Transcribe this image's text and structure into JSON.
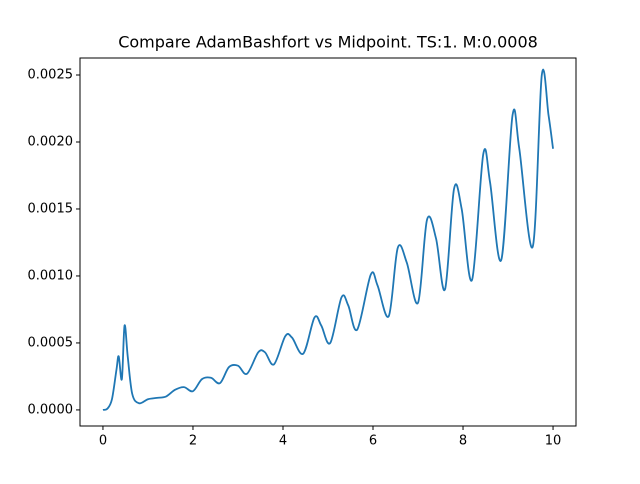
{
  "chart_data": {
    "type": "line",
    "title": "Compare AdamBashfort vs Midpoint. TS:1. M:0.0008",
    "x": [
      0,
      0.1,
      0.2,
      0.3,
      0.35,
      0.42,
      0.48,
      0.55,
      0.65,
      0.8,
      1.0,
      1.2,
      1.4,
      1.6,
      1.8,
      2.0,
      2.2,
      2.4,
      2.6,
      2.8,
      3.0,
      3.2,
      3.45,
      3.6,
      3.8,
      4.05,
      4.2,
      4.45,
      4.7,
      4.85,
      5.05,
      5.3,
      5.45,
      5.65,
      5.95,
      6.1,
      6.35,
      6.55,
      6.75,
      7.0,
      7.2,
      7.4,
      7.6,
      7.8,
      7.97,
      8.2,
      8.45,
      8.6,
      8.85,
      9.1,
      9.25,
      9.55,
      9.75,
      9.9,
      10.0
    ],
    "series": [
      {
        "name": "AdamBashfort vs Midpoint",
        "color": "#1f77b4",
        "values": [
          0,
          1e-05,
          8e-05,
          0.0003,
          0.0004,
          0.00023,
          0.00063,
          0.0004,
          0.00012,
          5e-05,
          8e-05,
          9e-05,
          0.0001,
          0.00015,
          0.00017,
          0.00014,
          0.00023,
          0.00024,
          0.0002,
          0.00032,
          0.00033,
          0.00027,
          0.00043,
          0.00043,
          0.00034,
          0.00055,
          0.00054,
          0.00042,
          0.00069,
          0.00063,
          0.0005,
          0.00084,
          0.00078,
          0.0006,
          0.00101,
          0.00093,
          0.0007,
          0.00121,
          0.0011,
          0.0008,
          0.00142,
          0.00128,
          0.0009,
          0.00165,
          0.0015,
          0.00097,
          0.00191,
          0.0017,
          0.00112,
          0.0022,
          0.00195,
          0.00122,
          0.0025,
          0.0022,
          0.00195
        ]
      }
    ],
    "xlim": [
      -0.51,
      10.51
    ],
    "ylim": [
      -0.00012,
      0.002627
    ],
    "xticks": [
      0,
      2,
      4,
      6,
      8,
      10
    ],
    "yticks": [
      {
        "value": 0,
        "label": "0.0000"
      },
      {
        "value": 0.0005,
        "label": "0.0005"
      },
      {
        "value": 0.001,
        "label": "0.0010"
      },
      {
        "value": 0.0015,
        "label": "0.0015"
      },
      {
        "value": 0.002,
        "label": "0.0020"
      },
      {
        "value": 0.0025,
        "label": "0.0025"
      }
    ]
  }
}
